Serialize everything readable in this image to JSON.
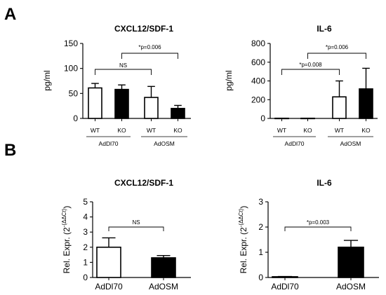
{
  "figure": {
    "panel_a_label": "A",
    "panel_b_label": "B"
  },
  "chart_data": [
    {
      "type": "bar",
      "panel": "A",
      "title": "CXCL12/SDF-1",
      "ylabel": "pg/ml",
      "ylim": [
        0,
        150
      ],
      "yticks": [
        0,
        50,
        100,
        150
      ],
      "categories": [
        "WT",
        "KO",
        "WT",
        "KO"
      ],
      "groups": [
        {
          "label": "AdDl70",
          "categories": [
            0,
            1
          ]
        },
        {
          "label": "AdOSM",
          "categories": [
            2,
            3
          ]
        }
      ],
      "values": [
        61,
        58,
        42,
        20
      ],
      "errors": [
        9,
        9,
        22,
        6
      ],
      "fills": [
        "#ffffff",
        "#000000",
        "#ffffff",
        "#000000"
      ],
      "comparisons": [
        {
          "from": 0,
          "to": 2,
          "label": "NS"
        },
        {
          "from": 1,
          "to": 3,
          "label": "*p=0.006"
        }
      ]
    },
    {
      "type": "bar",
      "panel": "A",
      "title": "IL-6",
      "ylabel": "pg/ml",
      "ylim": [
        0,
        800
      ],
      "yticks": [
        0,
        200,
        400,
        600,
        800
      ],
      "categories": [
        "WT",
        "KO",
        "WT",
        "KO"
      ],
      "groups": [
        {
          "label": "AdDl70",
          "categories": [
            0,
            1
          ]
        },
        {
          "label": "AdOSM",
          "categories": [
            2,
            3
          ]
        }
      ],
      "values": [
        2,
        2,
        230,
        315
      ],
      "errors": [
        0,
        0,
        170,
        220
      ],
      "fills": [
        "#ffffff",
        "#000000",
        "#ffffff",
        "#000000"
      ],
      "comparisons": [
        {
          "from": 0,
          "to": 2,
          "label": "*p=0.008"
        },
        {
          "from": 1,
          "to": 3,
          "label": "*p=0.006"
        }
      ]
    },
    {
      "type": "bar",
      "panel": "B",
      "title": "CXCL12/SDF-1",
      "ylabel": "Rel. Expr. (2",
      "ylabel_sup": "-(ΔΔCt)",
      "ylabel_end": ")",
      "ylim": [
        0,
        5
      ],
      "yticks": [
        0,
        1,
        2,
        3,
        4,
        5
      ],
      "categories": [
        "AdDl70",
        "AdOSM"
      ],
      "values": [
        2.0,
        1.3
      ],
      "errors": [
        0.62,
        0.15
      ],
      "fills": [
        "#ffffff",
        "#000000"
      ],
      "comparisons": [
        {
          "from": 0,
          "to": 1,
          "label": "NS"
        }
      ]
    },
    {
      "type": "bar",
      "panel": "B",
      "title": "IL-6",
      "ylabel": "Rel. Expr. (2",
      "ylabel_sup": "-(ΔΔCt)",
      "ylabel_end": ")",
      "ylim": [
        0,
        3
      ],
      "yticks": [
        0,
        1,
        2,
        3
      ],
      "categories": [
        "AdDl70",
        "AdOSM"
      ],
      "values": [
        0.03,
        1.2
      ],
      "errors": [
        0.01,
        0.27
      ],
      "fills": [
        "#ffffff",
        "#000000"
      ],
      "comparisons": [
        {
          "from": 0,
          "to": 1,
          "label": "*p=0.003"
        }
      ]
    }
  ]
}
